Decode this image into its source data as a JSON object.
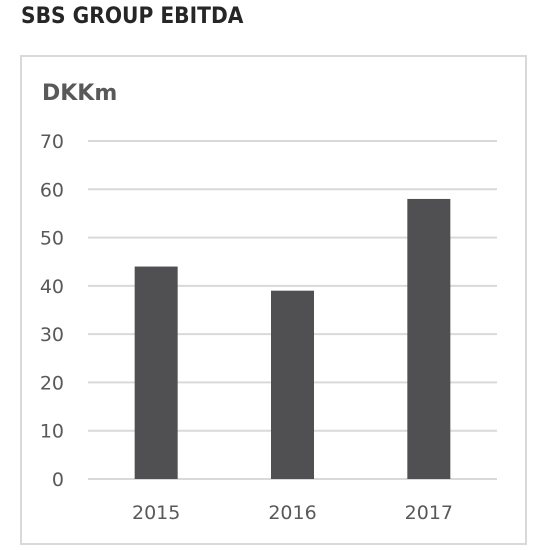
{
  "header": {
    "title": "SBS GROUP EBITDA"
  },
  "chart_data": {
    "type": "bar",
    "title": "SBS GROUP EBITDA",
    "unit_label": "DKKm",
    "xlabel": "",
    "ylabel": "",
    "categories": [
      "2015",
      "2016",
      "2017"
    ],
    "values": [
      44,
      39,
      58
    ],
    "ylim": [
      0,
      70
    ],
    "yticks": [
      0,
      10,
      20,
      30,
      40,
      50,
      60,
      70
    ],
    "grid": true,
    "legend": "none",
    "bar_color": "#505052",
    "grid_color": "#d9d9d9"
  }
}
